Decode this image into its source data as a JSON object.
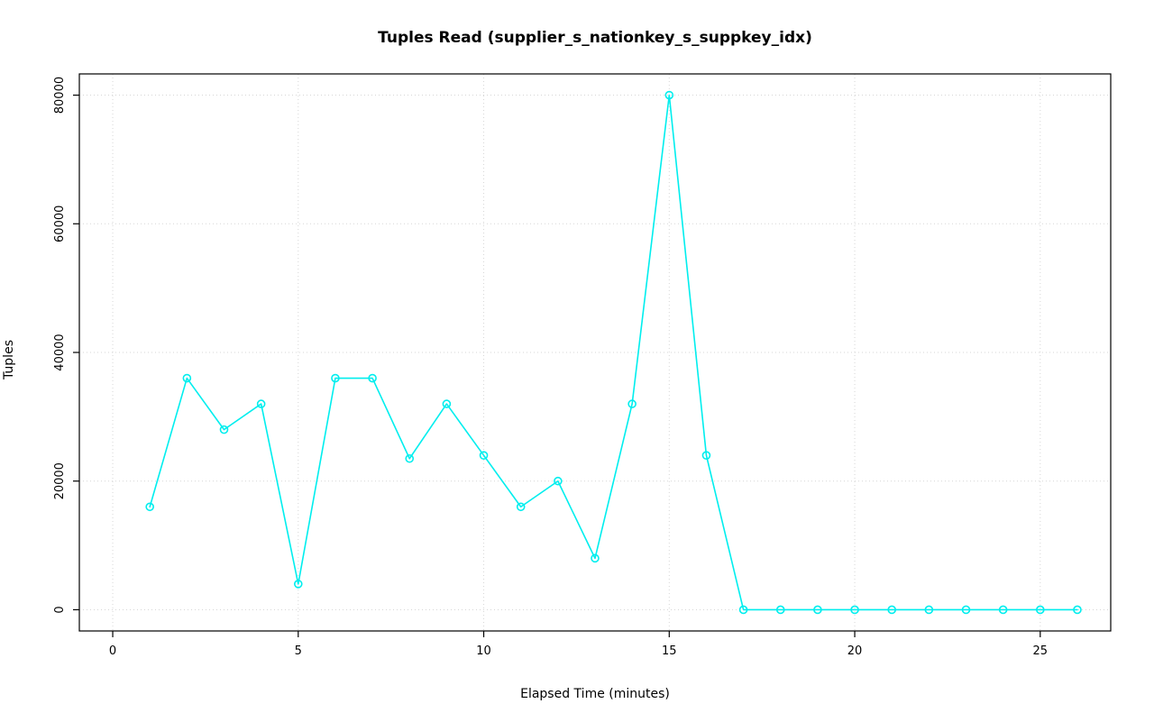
{
  "chart_data": {
    "type": "line",
    "title": "Tuples Read (supplier_s_nationkey_s_suppkey_idx)",
    "xlabel": "Elapsed Time (minutes)",
    "ylabel": "Tuples",
    "x": [
      1,
      2,
      3,
      4,
      5,
      6,
      7,
      8,
      9,
      10,
      11,
      12,
      13,
      14,
      15,
      16,
      17,
      18,
      19,
      20,
      21,
      22,
      23,
      24,
      25,
      26
    ],
    "values": [
      16000,
      36000,
      28000,
      32000,
      4000,
      36000,
      36000,
      23500,
      32000,
      24000,
      16000,
      20000,
      8000,
      32000,
      80000,
      24000,
      0,
      0,
      0,
      0,
      0,
      0,
      0,
      0,
      0,
      0
    ],
    "x_ticks": [
      0,
      5,
      10,
      15,
      20,
      25
    ],
    "y_ticks": [
      0,
      20000,
      40000,
      60000,
      80000
    ],
    "xlim": [
      -0.9,
      26.9
    ],
    "ylim": [
      -3300,
      83300
    ],
    "grid": true,
    "legend": "none",
    "marker": "open-circle",
    "line_color": "#00EEEE",
    "grid_color": "#D6D6D6",
    "axis_color": "#000000",
    "background_color": "#FFFFFF"
  }
}
